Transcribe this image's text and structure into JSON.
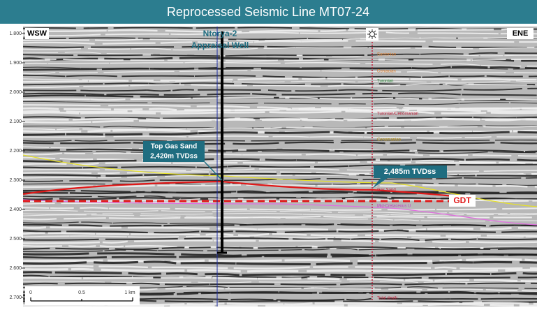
{
  "header": {
    "title": "Reprocessed Seismic Line MT07-24"
  },
  "axis": {
    "ticks": [
      "1.800",
      "1.900",
      "2.000",
      "2.100",
      "2.200",
      "2.300",
      "2.400",
      "2.500",
      "2.600",
      "2.700"
    ]
  },
  "directions": {
    "left": "WSW",
    "right": "ENE"
  },
  "well": {
    "name": "Ntorya-2",
    "subtitle": "Appraisal Well"
  },
  "annotations": {
    "top_gas_sand": {
      "line1": "Top Gas Sand",
      "line2": "2,420m TVDss"
    },
    "depth": "2,485m TVDss",
    "gdt": "GDT"
  },
  "formations": [
    "Santonian",
    "Coniacian",
    "Turonian",
    "Turonian/Cenomanian",
    "Cenomanian",
    "Gas Sand",
    "Mid-Cretaceous U",
    "Total depth"
  ],
  "scale_bar": {
    "labels": [
      "0",
      "0.5",
      "1 km"
    ]
  }
}
